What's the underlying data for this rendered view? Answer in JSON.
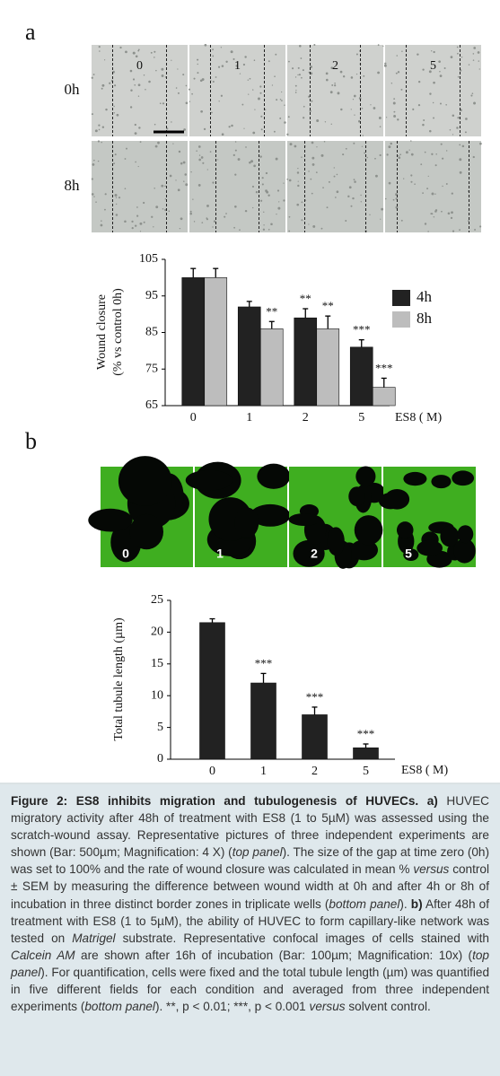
{
  "panel_a": {
    "label": "a",
    "rows": [
      "0h",
      "8h"
    ],
    "columns": [
      "0",
      "1",
      "2",
      "5"
    ]
  },
  "panel_b": {
    "label": "b",
    "columns": [
      "0",
      "1",
      "2",
      "5"
    ]
  },
  "chart_data": [
    {
      "type": "bar",
      "ylabel": [
        "Wound closure",
        "(% vs control 0h)"
      ],
      "xlabel": "ES8 ( M)",
      "categories": [
        "0",
        "1",
        "2",
        "5"
      ],
      "series": [
        {
          "name": "4h",
          "color": "#222222",
          "values": [
            100,
            92,
            89,
            81
          ],
          "errors": [
            2.5,
            1.5,
            2.5,
            2
          ],
          "significance": [
            null,
            null,
            "**",
            "***"
          ]
        },
        {
          "name": "8h",
          "color": "#bdbdbd",
          "values": [
            100,
            86,
            86,
            70
          ],
          "errors": [
            2.5,
            2,
            3.5,
            2.5
          ],
          "significance": [
            null,
            "**",
            "**",
            "***"
          ]
        }
      ],
      "ylim": [
        65,
        105
      ],
      "yticks": [
        65,
        75,
        85,
        95,
        105
      ],
      "legend": "right"
    },
    {
      "type": "bar",
      "ylabel": [
        "Total tubule length (µm)"
      ],
      "xlabel": "ES8 ( M)",
      "categories": [
        "0",
        "1",
        "2",
        "5"
      ],
      "color": "#222222",
      "values": [
        21.5,
        12,
        7,
        1.8
      ],
      "errors": [
        0.6,
        1.5,
        1.2,
        0.6
      ],
      "significance": [
        null,
        "***",
        "***",
        "***"
      ],
      "ylim": [
        0,
        25
      ],
      "yticks": [
        0,
        5,
        10,
        15,
        20,
        25
      ]
    }
  ],
  "caption": [
    {
      "style": "bold",
      "text": "Figure 2: ES8 inhibits migration and tubulogenesis of HUVECs. a)"
    },
    {
      "style": "normal",
      "text": " HUVEC migratory activity after 48h of treatment with ES8 (1 to 5µM) was assessed using the scratch-wound assay. Representative pictures of three independent experiments are shown (Bar: 500µm; Magnification: 4 X) ("
    },
    {
      "style": "italic",
      "text": "top panel"
    },
    {
      "style": "normal",
      "text": "). The size of the gap at time zero (0h) was set to 100% and the rate of wound closure was calculated in mean % "
    },
    {
      "style": "italic",
      "text": "versus"
    },
    {
      "style": "normal",
      "text": " control ± SEM by measuring the difference between wound width at 0h and after 4h or 8h of incubation in three distinct border zones in triplicate wells ("
    },
    {
      "style": "italic",
      "text": "bottom panel"
    },
    {
      "style": "normal",
      "text": "). "
    },
    {
      "style": "bold",
      "text": "b)"
    },
    {
      "style": "normal",
      "text": " After 48h of treatment with ES8 (1 to 5µM), the ability of HUVEC to form capillary-like network was tested on "
    },
    {
      "style": "italic",
      "text": "Matrigel"
    },
    {
      "style": "normal",
      "text": " substrate. Representative confocal images of cells stained with "
    },
    {
      "style": "italic",
      "text": "Calcein AM"
    },
    {
      "style": "normal",
      "text": " are shown after 16h of incubation (Bar: 100µm; Magnification: 10x) ("
    },
    {
      "style": "italic",
      "text": "top panel"
    },
    {
      "style": "normal",
      "text": "). For quantification, cells were fixed and the total tubule length (µm) was quantified in five different fields for each condition and averaged from three independent experiments ("
    },
    {
      "style": "italic",
      "text": "bottom panel"
    },
    {
      "style": "normal",
      "text": "). **, p < 0.01; ***, p < 0.001 "
    },
    {
      "style": "italic",
      "text": "versus"
    },
    {
      "style": "normal",
      "text": " solvent control."
    }
  ]
}
